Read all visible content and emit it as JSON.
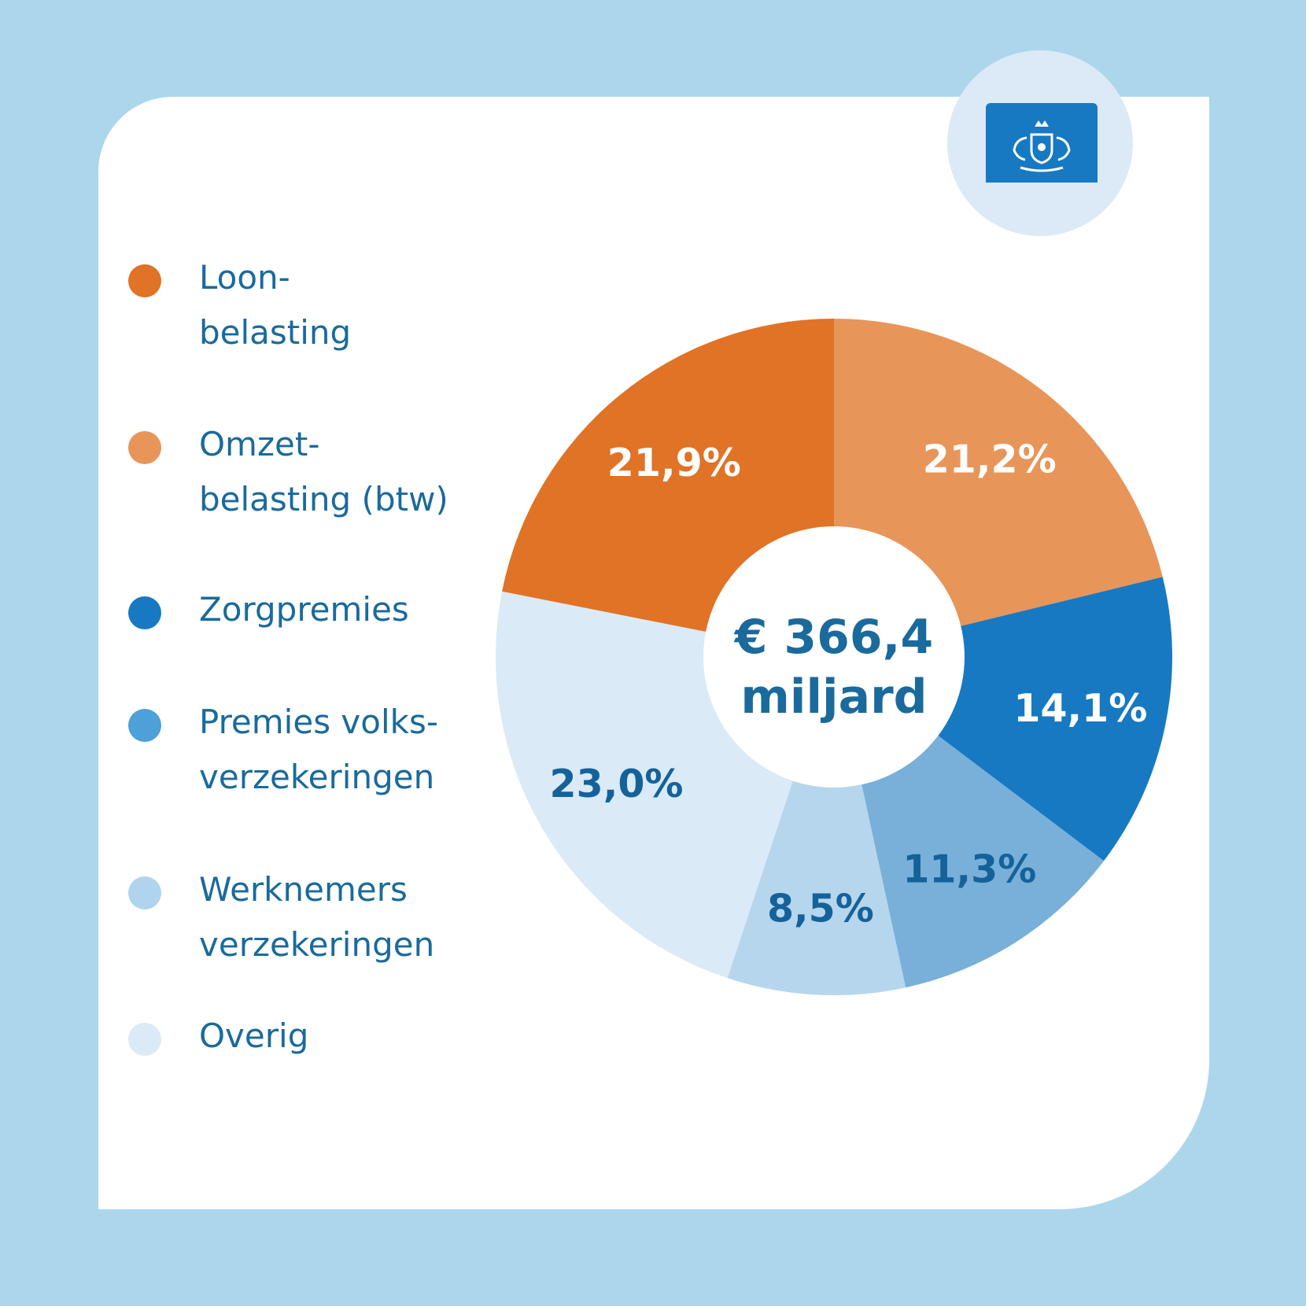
{
  "chart_data": {
    "type": "pie",
    "variant": "donut",
    "center_label": [
      "€ 366,4",
      "miljard"
    ],
    "slices": [
      {
        "name": "Omzetbelasting (btw)",
        "value": 21.2,
        "label": "21,2%",
        "color": "#e8955a",
        "label_color": "#ffffff"
      },
      {
        "name": "Zorgpremies",
        "value": 14.1,
        "label": "14,1%",
        "color": "#1779c2",
        "label_color": "#ffffff"
      },
      {
        "name": "Premies volksverzekeringen",
        "value": 11.3,
        "label": "11,3%",
        "color": "#78b0d9",
        "label_color": "#15629a"
      },
      {
        "name": "Werknemersverzekeringen",
        "value": 8.5,
        "label": "8,5%",
        "color": "#b6d6ee",
        "label_color": "#15629a"
      },
      {
        "name": "Overig",
        "value": 23.0,
        "label": "23,0%",
        "color": "#daeaf6",
        "label_color": "#15629a"
      },
      {
        "name": "Loonbelasting",
        "value": 21.9,
        "label": "21,9%",
        "color": "#e07326",
        "label_color": "#ffffff"
      }
    ],
    "legend": {
      "position": "left",
      "items": [
        {
          "label": "Loon-\nbelasting",
          "color": "#e07326"
        },
        {
          "label": "Omzet-\nbelasting (btw)",
          "color": "#e8955a"
        },
        {
          "label": "Zorgpremies",
          "color": "#1779c2"
        },
        {
          "label": "Premies volks-\nverzekeringen",
          "color": "#4da0d8"
        },
        {
          "label": "Werknemers\nverzekeringen",
          "color": "#b0d4ee"
        },
        {
          "label": "Overig",
          "color": "#daeaf6"
        }
      ]
    }
  },
  "logo": {
    "icon": "rijksoverheid-coat-of-arms-icon",
    "color": "#1779c2"
  }
}
